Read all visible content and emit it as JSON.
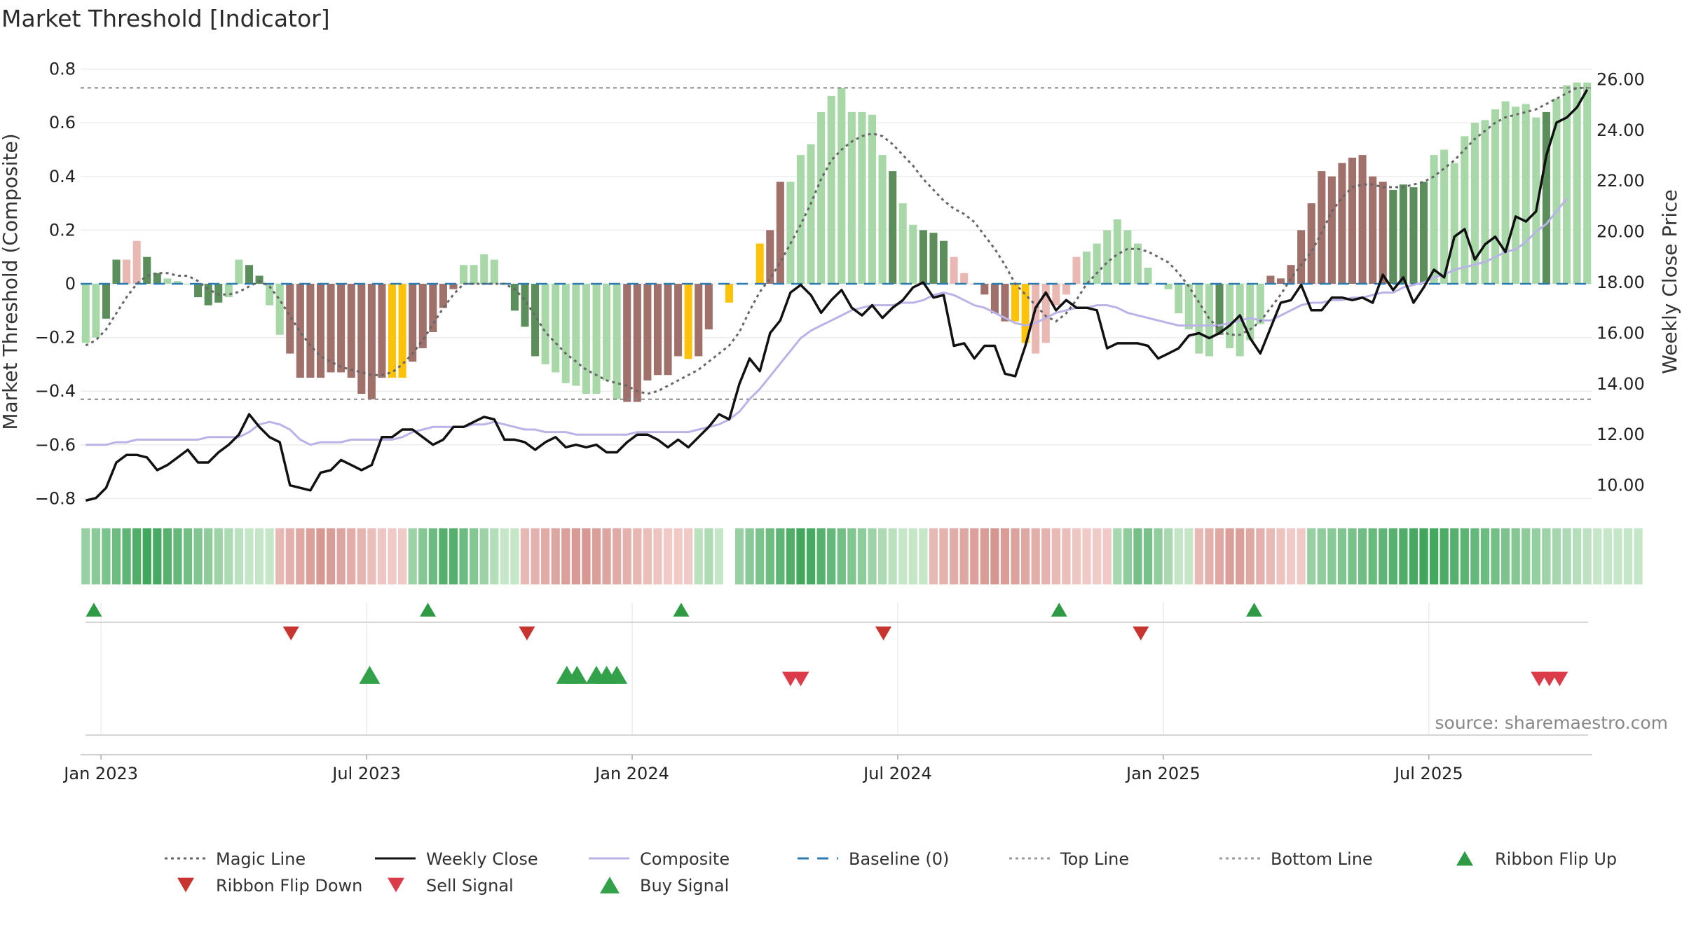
{
  "chart_data": {
    "type": "bar+line",
    "title": "Market Threshold [Indicator]",
    "ylabel_left": "Market Threshold (Composite)",
    "ylabel_right": "Weekly Close Price",
    "ylim_left": [
      -0.85,
      0.8
    ],
    "ylim_right": [
      8.4,
      26.0
    ],
    "yticks_left": [
      0.8,
      0.6,
      0.4,
      0.2,
      0,
      -0.2,
      -0.4,
      -0.6,
      -0.8
    ],
    "yticks_left_labels": [
      "0.8",
      "0.6",
      "0.4",
      "0.2",
      "0",
      "−0.2",
      "−0.4",
      "−0.6",
      "−0.8"
    ],
    "yticks_right": [
      26.0,
      24.0,
      22.0,
      20.0,
      18.0,
      16.0,
      14.0,
      12.0,
      10.0
    ],
    "yticks_right_labels": [
      "26.00",
      "24.00",
      "22.00",
      "20.00",
      "18.00",
      "16.00",
      "14.00",
      "12.00",
      "10.00"
    ],
    "xticks": [
      {
        "label": "Jan 2023",
        "week": 1.5
      },
      {
        "label": "Jul 2023",
        "week": 27.5
      },
      {
        "label": "Jan 2024",
        "week": 53.5
      },
      {
        "label": "Jul 2024",
        "week": 79.5
      },
      {
        "label": "Jan 2025",
        "week": 105.5
      },
      {
        "label": "Jul 2025",
        "week": 131.5
      }
    ],
    "top_line": 0.73,
    "bottom_line": -0.43,
    "baseline": 0,
    "composite": [
      -0.22,
      -0.2,
      -0.13,
      0.09,
      0.09,
      0.16,
      0.1,
      0.04,
      0.02,
      0.01,
      0,
      -0.05,
      -0.08,
      -0.07,
      -0.05,
      0.09,
      0.07,
      0.03,
      -0.08,
      -0.19,
      -0.26,
      -0.35,
      -0.35,
      -0.35,
      -0.33,
      -0.33,
      -0.35,
      -0.41,
      -0.43,
      -0.35,
      -0.35,
      -0.35,
      -0.29,
      -0.24,
      -0.18,
      -0.09,
      -0.02,
      0.07,
      0.07,
      0.11,
      0.09,
      0,
      -0.1,
      -0.16,
      -0.27,
      -0.3,
      -0.33,
      -0.37,
      -0.38,
      -0.41,
      -0.41,
      -0.36,
      -0.43,
      -0.44,
      -0.44,
      -0.36,
      -0.34,
      -0.34,
      -0.27,
      -0.28,
      -0.27,
      -0.17,
      null,
      -0.07,
      null,
      null,
      0.15,
      0.2,
      0.38,
      0.38,
      0.48,
      0.52,
      0.64,
      0.7,
      0.73,
      0.64,
      0.64,
      0.63,
      0.48,
      0.42,
      0.3,
      0.22,
      0.2,
      0.19,
      0.16,
      0.1,
      0.04,
      0,
      -0.04,
      -0.11,
      -0.14,
      -0.14,
      -0.22,
      -0.26,
      -0.22,
      -0.08,
      -0.04,
      0.1,
      0.12,
      0.15,
      0.2,
      0.24,
      0.2,
      0.15,
      0.06,
      0,
      -0.02,
      -0.11,
      -0.17,
      -0.26,
      -0.27,
      -0.19,
      -0.24,
      -0.27,
      -0.21,
      -0.15,
      0.03,
      0.02,
      0.07,
      0.2,
      0.3,
      0.42,
      0.4,
      0.45,
      0.47,
      0.48,
      0.4,
      0.38,
      0.35,
      0.37,
      0.36,
      0.38,
      0.48,
      0.5,
      0.45,
      0.55,
      0.6,
      0.61,
      0.65,
      0.68,
      0.66,
      0.67,
      0.62,
      0.64,
      0.69,
      0.74,
      0.75,
      0.75
    ],
    "bar_color_key": "00112211000111001100443344333455443330000111100000000443344533455553300000000001001112223335522222000000000000010000443343344333111100000000000100000022223222223355550",
    "weekly_close": [
      9.4,
      9.5,
      9.9,
      10.9,
      11.2,
      11.2,
      11.1,
      10.6,
      10.8,
      11.1,
      11.4,
      10.9,
      10.9,
      11.3,
      11.6,
      12.0,
      12.8,
      12.3,
      11.9,
      11.7,
      10.0,
      9.9,
      9.8,
      10.5,
      10.6,
      11.0,
      10.8,
      10.6,
      10.8,
      11.9,
      11.9,
      12.2,
      12.2,
      11.9,
      11.6,
      11.8,
      12.3,
      12.3,
      12.5,
      12.7,
      12.6,
      11.8,
      11.8,
      11.7,
      11.4,
      11.7,
      11.9,
      11.5,
      11.6,
      11.5,
      11.6,
      11.3,
      11.3,
      11.7,
      12.0,
      12.0,
      11.8,
      11.5,
      11.8,
      11.5,
      11.9,
      12.3,
      12.8,
      12.6,
      14.0,
      15.0,
      14.5,
      16.0,
      16.5,
      17.6,
      17.9,
      17.5,
      16.8,
      17.3,
      17.7,
      17.0,
      16.7,
      17.1,
      16.6,
      17.0,
      17.3,
      17.8,
      18.0,
      17.4,
      17.5,
      15.5,
      15.6,
      15.0,
      15.5,
      15.5,
      14.4,
      14.3,
      15.5,
      17.0,
      17.6,
      16.9,
      17.3,
      17.0,
      17.0,
      16.9,
      15.4,
      15.6,
      15.6,
      15.6,
      15.5,
      15.0,
      15.2,
      15.4,
      15.9,
      16.0,
      15.8,
      16.0,
      16.3,
      16.7,
      15.8,
      15.2,
      16.2,
      17.2,
      17.3,
      17.9,
      16.9,
      16.9,
      17.4,
      17.4,
      17.3,
      17.4,
      17.2,
      18.3,
      17.7,
      18.2,
      17.2,
      17.8,
      18.5,
      18.2,
      19.8,
      20.1,
      18.9,
      19.5,
      19.8,
      19.2,
      20.6,
      20.4,
      20.8,
      23.0,
      24.3,
      24.5,
      24.9,
      25.6
    ],
    "composite_smooth": [
      11.6,
      11.6,
      11.6,
      11.7,
      11.7,
      11.8,
      11.8,
      11.8,
      11.8,
      11.8,
      11.8,
      11.8,
      11.9,
      11.9,
      11.9,
      11.9,
      12.1,
      12.4,
      12.5,
      12.4,
      12.2,
      11.8,
      11.6,
      11.7,
      11.7,
      11.7,
      11.8,
      11.8,
      11.8,
      11.8,
      11.8,
      11.9,
      12.1,
      12.2,
      12.3,
      12.3,
      12.3,
      12.3,
      12.4,
      12.4,
      12.5,
      12.4,
      12.3,
      12.2,
      12.2,
      12.1,
      12.1,
      12.1,
      12.0,
      12.0,
      12.0,
      12.0,
      12.0,
      12.0,
      12.1,
      12.1,
      12.1,
      12.1,
      12.1,
      12.1,
      12.2,
      12.3,
      12.4,
      12.6,
      12.9,
      13.4,
      13.8,
      14.3,
      14.8,
      15.3,
      15.8,
      16.1,
      16.3,
      16.5,
      16.7,
      16.9,
      17.0,
      17.1,
      17.1,
      17.1,
      17.2,
      17.2,
      17.3,
      17.5,
      17.6,
      17.5,
      17.3,
      17.1,
      17.0,
      16.8,
      16.6,
      16.4,
      16.3,
      16.4,
      16.6,
      16.8,
      16.9,
      17.0,
      17.0,
      17.1,
      17.1,
      17.0,
      16.8,
      16.7,
      16.6,
      16.5,
      16.4,
      16.3,
      16.3,
      16.3,
      16.3,
      16.3,
      16.4,
      16.5,
      16.6,
      16.5,
      16.5,
      16.7,
      16.9,
      17.1,
      17.2,
      17.2,
      17.3,
      17.3,
      17.4,
      17.4,
      17.5,
      17.6,
      17.6,
      17.8,
      17.9,
      18.0,
      18.2,
      18.3,
      18.5,
      18.6,
      18.7,
      18.8,
      19.0,
      19.2,
      19.3,
      19.6,
      20.0,
      20.3,
      20.8,
      21.3
    ],
    "magic_line": [
      -0.23,
      -0.21,
      -0.17,
      -0.11,
      -0.05,
      0,
      0.03,
      0.04,
      0.04,
      0.03,
      0.03,
      0.01,
      -0.02,
      -0.04,
      -0.04,
      -0.03,
      -0.01,
      0.01,
      -0.01,
      -0.06,
      -0.12,
      -0.18,
      -0.23,
      -0.27,
      -0.29,
      -0.31,
      -0.32,
      -0.33,
      -0.34,
      -0.34,
      -0.33,
      -0.3,
      -0.26,
      -0.21,
      -0.15,
      -0.09,
      -0.04,
      0,
      0,
      0,
      0,
      0,
      -0.02,
      -0.06,
      -0.12,
      -0.18,
      -0.22,
      -0.26,
      -0.29,
      -0.32,
      -0.34,
      -0.36,
      -0.37,
      -0.38,
      -0.4,
      -0.41,
      -0.4,
      -0.38,
      -0.36,
      -0.34,
      -0.32,
      -0.29,
      -0.26,
      -0.23,
      -0.18,
      -0.1,
      -0.03,
      0.02,
      0.08,
      0.15,
      0.22,
      0.3,
      0.39,
      0.46,
      0.5,
      0.53,
      0.55,
      0.56,
      0.55,
      0.52,
      0.48,
      0.44,
      0.39,
      0.35,
      0.31,
      0.28,
      0.26,
      0.23,
      0.18,
      0.13,
      0.07,
      0,
      -0.04,
      -0.08,
      -0.12,
      -0.14,
      -0.11,
      -0.06,
      0,
      0.04,
      0.08,
      0.11,
      0.13,
      0.13,
      0.12,
      0.1,
      0.08,
      0.04,
      -0.01,
      -0.07,
      -0.13,
      -0.17,
      -0.19,
      -0.19,
      -0.17,
      -0.14,
      -0.09,
      -0.04,
      0.02,
      0.07,
      0.12,
      0.19,
      0.27,
      0.32,
      0.36,
      0.37,
      0.37,
      0.36,
      0.36,
      0.36,
      0.37,
      0.38,
      0.4,
      0.43,
      0.46,
      0.5,
      0.54,
      0.57,
      0.6,
      0.62,
      0.63,
      0.64,
      0.65,
      0.67,
      0.69,
      0.71,
      0.73,
      0.73
    ],
    "ribbon": "gggggggggggggggggggrrrrrrrrrrrrrgggggggggggrrrrrrrrrrrrrrrrrggg_gggggggggggggggggggrrrrrrrrrrrrrrrrrrggggggggrrrrrrrrrrrggggggggggggggggggggggggggggggggg",
    "ribbon_flip_up": [
      0.8,
      33.5,
      58.3,
      95.3,
      114.4
    ],
    "ribbon_flip_down": [
      20.1,
      43.2,
      78.1,
      103.3
    ],
    "buy_signal": [
      27.8,
      47.1,
      48.1,
      50.0,
      51.0,
      52.0
    ],
    "sell_signal": [
      69.0,
      70.0,
      142.3,
      143.3,
      144.3
    ],
    "legend": [
      {
        "label": "Magic Line",
        "kind": "line",
        "color": "#666666",
        "dash": "dotted"
      },
      {
        "label": "Weekly Close",
        "kind": "line",
        "color": "#111111",
        "dash": "solid"
      },
      {
        "label": "Composite",
        "kind": "line",
        "color": "#b9b3e8",
        "dash": "solid"
      },
      {
        "label": "Baseline (0)",
        "kind": "line",
        "color": "#2b7bb0",
        "dash": "dashed"
      },
      {
        "label": "Top Line",
        "kind": "line",
        "color": "#999999",
        "dash": "dotted"
      },
      {
        "label": "Bottom Line",
        "kind": "line",
        "color": "#999999",
        "dash": "dotted"
      },
      {
        "label": "Ribbon Flip Up",
        "kind": "up",
        "color": "#2e9a44"
      },
      {
        "label": "Ribbon Flip Down",
        "kind": "down",
        "color": "#c8342f"
      },
      {
        "label": "Sell Signal",
        "kind": "down",
        "color": "#dc3b49"
      },
      {
        "label": "Buy Signal",
        "kind": "up",
        "color": "#33a04a"
      }
    ],
    "colors": {
      "bar_light_green": "#a9d8a8",
      "bar_dark_green": "#5c8e5b",
      "bar_light_red": "#e9b8b3",
      "bar_dark_red": "#a0706a",
      "bar_extreme": "#ffc20a",
      "ribbon_green_light": "#c6e6c8",
      "ribbon_green_dark": "#3da55a",
      "ribbon_red_light": "#f0cac7",
      "ribbon_red_dark": "#d69690"
    },
    "source_note": "source: sharemaestro.com"
  }
}
